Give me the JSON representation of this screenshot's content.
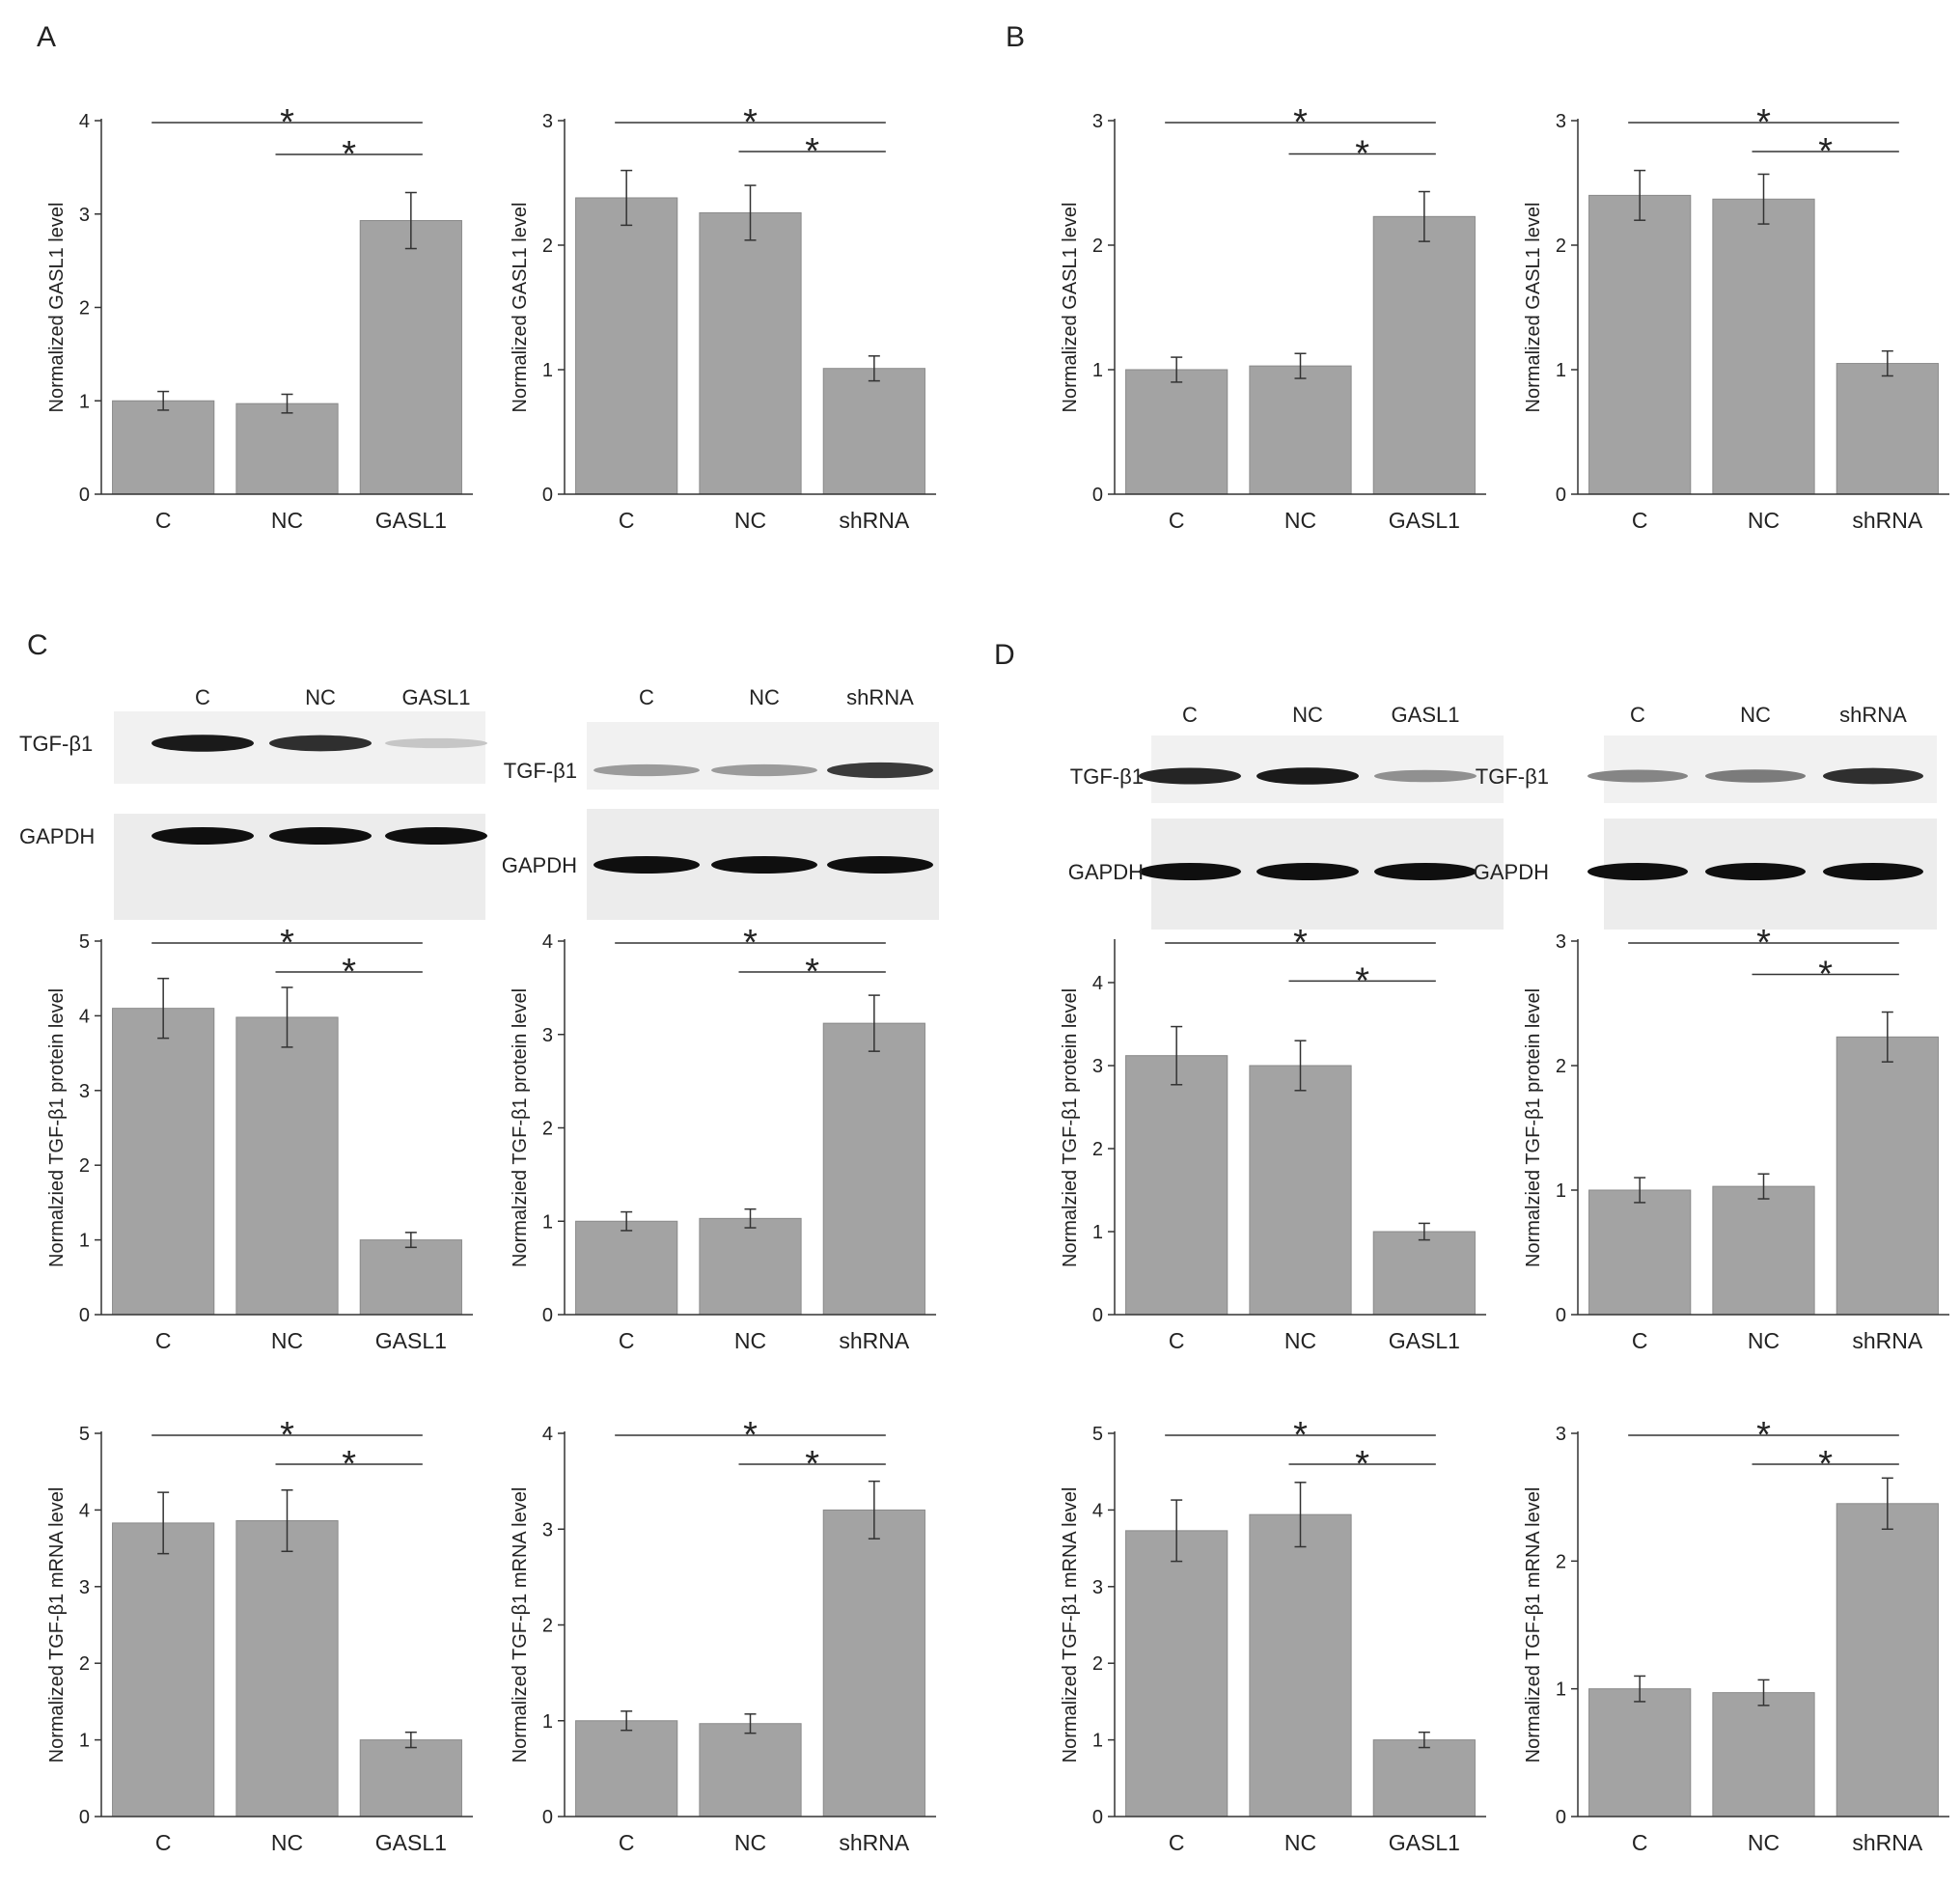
{
  "panel_letters": {
    "a": "A",
    "b": "B",
    "c": "C",
    "d": "D"
  },
  "blots": [
    {
      "lanes": [
        "C",
        "NC",
        "GASL1"
      ],
      "labels": [
        "TGF-β1",
        "GAPDH"
      ],
      "tgf": [
        0.95,
        0.85,
        0.15
      ],
      "gapdh": [
        1.0,
        1.0,
        1.0
      ]
    },
    {
      "lanes": [
        "C",
        "NC",
        "shRNA"
      ],
      "labels": [
        "TGF-β1",
        "GAPDH"
      ],
      "tgf": [
        0.35,
        0.35,
        0.8
      ],
      "gapdh": [
        1.0,
        1.0,
        1.0
      ]
    },
    {
      "lanes": [
        "C",
        "NC",
        "GASL1"
      ],
      "labels": [
        "TGF-β1",
        "GAPDH"
      ],
      "tgf": [
        0.9,
        0.95,
        0.4
      ],
      "gapdh": [
        1.0,
        1.0,
        1.0
      ]
    },
    {
      "lanes": [
        "C",
        "NC",
        "shRNA"
      ],
      "labels": [
        "TGF-β1",
        "GAPDH"
      ],
      "tgf": [
        0.45,
        0.5,
        0.85
      ],
      "gapdh": [
        1.0,
        1.0,
        1.0
      ]
    }
  ],
  "chart_data": [
    {
      "type": "bar",
      "categories": [
        "C",
        "NC",
        "GASL1"
      ],
      "values": [
        1.0,
        0.97,
        2.93
      ],
      "errors": [
        0.1,
        0.1,
        0.3
      ],
      "ylabel": "Normalized GASL1 level",
      "ylim": [
        0,
        4
      ],
      "yticks": [
        0,
        1,
        2,
        3,
        4
      ],
      "significance": [
        "*",
        "*"
      ],
      "bar_color": "#a3a3a3"
    },
    {
      "type": "bar",
      "categories": [
        "C",
        "NC",
        "shRNA"
      ],
      "values": [
        2.38,
        2.26,
        1.01
      ],
      "errors": [
        0.22,
        0.22,
        0.1
      ],
      "ylabel": "Normalized GASL1 level",
      "ylim": [
        0,
        3
      ],
      "yticks": [
        0,
        1,
        2,
        3
      ],
      "significance": [
        "*",
        "*"
      ],
      "bar_color": "#a3a3a3"
    },
    {
      "type": "bar",
      "categories": [
        "C",
        "NC",
        "GASL1"
      ],
      "values": [
        1.0,
        1.03,
        2.23
      ],
      "errors": [
        0.1,
        0.1,
        0.2
      ],
      "ylabel": "Normalized GASL1 level",
      "ylim": [
        0,
        3
      ],
      "yticks": [
        0,
        1,
        2,
        3
      ],
      "significance": [
        "*",
        "*"
      ],
      "bar_color": "#a3a3a3"
    },
    {
      "type": "bar",
      "categories": [
        "C",
        "NC",
        "shRNA"
      ],
      "values": [
        2.4,
        2.37,
        1.05
      ],
      "errors": [
        0.2,
        0.2,
        0.1
      ],
      "ylabel": "Normalized GASL1 level",
      "ylim": [
        0,
        3
      ],
      "yticks": [
        0,
        1,
        2,
        3
      ],
      "significance": [
        "*",
        "*"
      ],
      "bar_color": "#a3a3a3"
    },
    {
      "type": "bar",
      "categories": [
        "C",
        "NC",
        "GASL1"
      ],
      "values": [
        4.1,
        3.98,
        1.0
      ],
      "errors": [
        0.4,
        0.4,
        0.1
      ],
      "ylabel": "Normalzied TGF-β1 protein level",
      "ylim": [
        0,
        5
      ],
      "yticks": [
        0,
        1,
        2,
        3,
        4,
        5
      ],
      "significance": [
        "*",
        "*"
      ],
      "bar_color": "#a3a3a3"
    },
    {
      "type": "bar",
      "categories": [
        "C",
        "NC",
        "shRNA"
      ],
      "values": [
        1.0,
        1.03,
        3.12
      ],
      "errors": [
        0.1,
        0.1,
        0.3
      ],
      "ylabel": "Normalzied TGF-β1 protein level",
      "ylim": [
        0,
        4
      ],
      "yticks": [
        0,
        1,
        2,
        3,
        4
      ],
      "significance": [
        "*",
        "*"
      ],
      "bar_color": "#a3a3a3"
    },
    {
      "type": "bar",
      "categories": [
        "C",
        "NC",
        "GASL1"
      ],
      "values": [
        3.12,
        3.0,
        1.0
      ],
      "errors": [
        0.35,
        0.3,
        0.1
      ],
      "ylabel": "Normalzied TGF-β1 protein level",
      "ylim": [
        0,
        4.5
      ],
      "yticks": [
        0,
        1,
        2,
        3,
        4
      ],
      "significance": [
        "*",
        "*"
      ],
      "bar_color": "#a3a3a3"
    },
    {
      "type": "bar",
      "categories": [
        "C",
        "NC",
        "shRNA"
      ],
      "values": [
        1.0,
        1.03,
        2.23
      ],
      "errors": [
        0.1,
        0.1,
        0.2
      ],
      "ylabel": "Normalzied TGF-β1 protein level",
      "ylim": [
        0,
        3
      ],
      "yticks": [
        0,
        1,
        2,
        3
      ],
      "significance": [
        "*",
        "*"
      ],
      "bar_color": "#a3a3a3"
    },
    {
      "type": "bar",
      "categories": [
        "C",
        "NC",
        "GASL1"
      ],
      "values": [
        3.83,
        3.86,
        1.0
      ],
      "errors": [
        0.4,
        0.4,
        0.1
      ],
      "ylabel": "Normalized TGF-β1 mRNA level",
      "ylim": [
        0,
        5
      ],
      "yticks": [
        0,
        1,
        2,
        3,
        4,
        5
      ],
      "significance": [
        "*",
        "*"
      ],
      "bar_color": "#a3a3a3"
    },
    {
      "type": "bar",
      "categories": [
        "C",
        "NC",
        "shRNA"
      ],
      "values": [
        1.0,
        0.97,
        3.2
      ],
      "errors": [
        0.1,
        0.1,
        0.3
      ],
      "ylabel": "Normalized TGF-β1 mRNA level",
      "ylim": [
        0,
        4
      ],
      "yticks": [
        0,
        1,
        2,
        3,
        4
      ],
      "significance": [
        "*",
        "*"
      ],
      "bar_color": "#a3a3a3"
    },
    {
      "type": "bar",
      "categories": [
        "C",
        "NC",
        "GASL1"
      ],
      "values": [
        3.73,
        3.94,
        1.0
      ],
      "errors": [
        0.4,
        0.42,
        0.1
      ],
      "ylabel": "Normalized TGF-β1 mRNA level",
      "ylim": [
        0,
        5
      ],
      "yticks": [
        0,
        1,
        2,
        3,
        4,
        5
      ],
      "significance": [
        "*",
        "*"
      ],
      "bar_color": "#a3a3a3"
    },
    {
      "type": "bar",
      "categories": [
        "C",
        "NC",
        "shRNA"
      ],
      "values": [
        1.0,
        0.97,
        2.45
      ],
      "errors": [
        0.1,
        0.1,
        0.2
      ],
      "ylabel": "Normalized TGF-β1 mRNA level",
      "ylim": [
        0,
        3
      ],
      "yticks": [
        0,
        1,
        2,
        3
      ],
      "significance": [
        "*",
        "*"
      ],
      "bar_color": "#a3a3a3"
    }
  ]
}
